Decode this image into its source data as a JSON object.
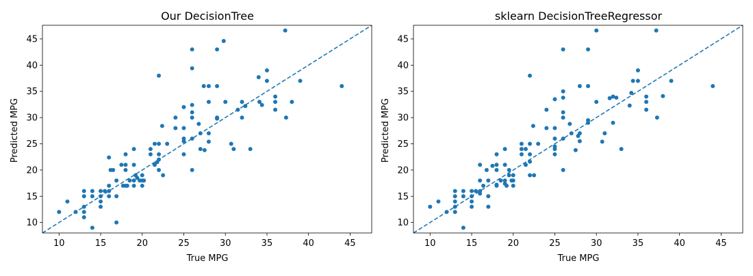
{
  "chart_data": [
    {
      "type": "scatter",
      "title": "Our DecisionTree",
      "xlabel": "True MPG",
      "ylabel": "Predicted MPG",
      "xlim": [
        8.0,
        47.6
      ],
      "ylim": [
        8.0,
        47.6
      ],
      "xticks": [
        10,
        15,
        20,
        25,
        30,
        35,
        40,
        45
      ],
      "yticks": [
        10,
        15,
        20,
        25,
        30,
        35,
        40,
        45
      ],
      "grid": false,
      "point_color": "#1f77b4",
      "reference_line": {
        "style": "dashed",
        "color": "#1f77b4",
        "from": [
          8.0,
          8.0
        ],
        "to": [
          47.6,
          47.6
        ]
      },
      "points": [
        [
          10,
          12
        ],
        [
          11,
          14
        ],
        [
          12,
          12
        ],
        [
          13,
          16
        ],
        [
          13,
          15
        ],
        [
          13,
          13
        ],
        [
          13,
          12
        ],
        [
          13,
          11
        ],
        [
          14,
          9
        ],
        [
          14,
          16
        ],
        [
          14,
          15
        ],
        [
          15,
          16
        ],
        [
          15,
          15
        ],
        [
          15,
          14
        ],
        [
          15,
          13
        ],
        [
          15.5,
          16
        ],
        [
          16,
          17
        ],
        [
          16,
          16
        ],
        [
          16,
          15
        ],
        [
          16,
          22.4
        ],
        [
          16.2,
          20
        ],
        [
          16.5,
          20
        ],
        [
          16.9,
          18
        ],
        [
          16.9,
          15
        ],
        [
          16.9,
          10
        ],
        [
          17.5,
          21
        ],
        [
          17.7,
          17
        ],
        [
          18,
          23
        ],
        [
          18,
          21
        ],
        [
          18,
          20
        ],
        [
          18,
          17
        ],
        [
          18.2,
          17
        ],
        [
          18.5,
          18
        ],
        [
          19,
          24
        ],
        [
          19,
          21
        ],
        [
          19,
          18
        ],
        [
          19,
          17
        ],
        [
          19.2,
          19
        ],
        [
          19.4,
          18.5
        ],
        [
          19.7,
          18
        ],
        [
          20,
          19
        ],
        [
          20,
          18
        ],
        [
          20,
          17
        ],
        [
          20.2,
          18
        ],
        [
          21,
          24
        ],
        [
          21,
          23
        ],
        [
          21.5,
          21
        ],
        [
          21.5,
          25
        ],
        [
          21.8,
          21.5
        ],
        [
          22,
          38
        ],
        [
          22,
          25
        ],
        [
          22,
          23
        ],
        [
          22,
          22
        ],
        [
          22,
          20
        ],
        [
          22.4,
          28.4
        ],
        [
          22.5,
          19
        ],
        [
          23,
          25
        ],
        [
          24,
          30
        ],
        [
          24,
          28
        ],
        [
          25,
          32
        ],
        [
          25,
          28
        ],
        [
          25,
          26
        ],
        [
          25,
          25.5
        ],
        [
          25,
          23
        ],
        [
          26,
          43
        ],
        [
          26,
          39.4
        ],
        [
          26,
          32.4
        ],
        [
          26,
          31
        ],
        [
          26,
          30
        ],
        [
          26,
          26
        ],
        [
          26,
          20
        ],
        [
          26.8,
          28.8
        ],
        [
          27,
          24
        ],
        [
          27,
          27
        ],
        [
          27.4,
          36
        ],
        [
          27.5,
          23.8
        ],
        [
          28,
          36
        ],
        [
          28,
          33
        ],
        [
          28,
          27
        ],
        [
          28,
          25.4
        ],
        [
          29,
          43
        ],
        [
          29,
          36
        ],
        [
          29,
          30
        ],
        [
          29,
          29.8
        ],
        [
          29.8,
          44.6
        ],
        [
          30,
          33
        ],
        [
          30.7,
          25
        ],
        [
          31,
          24
        ],
        [
          31.5,
          31.5
        ],
        [
          32,
          33
        ],
        [
          32,
          30
        ],
        [
          32.4,
          32.2
        ],
        [
          33,
          24
        ],
        [
          34,
          37.7
        ],
        [
          34.1,
          33
        ],
        [
          34.4,
          32.4
        ],
        [
          35,
          39
        ],
        [
          35,
          37
        ],
        [
          36,
          34
        ],
        [
          36,
          33
        ],
        [
          36,
          31.5
        ],
        [
          37.2,
          46.6
        ],
        [
          37.3,
          30
        ],
        [
          38,
          33
        ],
        [
          39,
          37
        ],
        [
          44,
          36
        ]
      ]
    },
    {
      "type": "scatter",
      "title": "sklearn DecisionTreeRegressor",
      "xlabel": "True MPG",
      "ylabel": "Predicted MPG",
      "xlim": [
        8.0,
        47.6
      ],
      "ylim": [
        8.0,
        47.6
      ],
      "xticks": [
        10,
        15,
        20,
        25,
        30,
        35,
        40,
        45
      ],
      "yticks": [
        10,
        15,
        20,
        25,
        30,
        35,
        40,
        45
      ],
      "grid": false,
      "point_color": "#1f77b4",
      "reference_line": {
        "style": "dashed",
        "color": "#1f77b4",
        "from": [
          8.0,
          8.0
        ],
        "to": [
          47.6,
          47.6
        ]
      },
      "points": [
        [
          10,
          13
        ],
        [
          11,
          14
        ],
        [
          12,
          12
        ],
        [
          13,
          16
        ],
        [
          13,
          15
        ],
        [
          13,
          14
        ],
        [
          13,
          13
        ],
        [
          13,
          12
        ],
        [
          14,
          9
        ],
        [
          14,
          16
        ],
        [
          14,
          15
        ],
        [
          15,
          16
        ],
        [
          15,
          15
        ],
        [
          15,
          14
        ],
        [
          15,
          13
        ],
        [
          15.5,
          16
        ],
        [
          16,
          21
        ],
        [
          16,
          18
        ],
        [
          16,
          16
        ],
        [
          16,
          15.5
        ],
        [
          16.4,
          17
        ],
        [
          16.8,
          20
        ],
        [
          17,
          13
        ],
        [
          17,
          15
        ],
        [
          17,
          18
        ],
        [
          17.5,
          20.8
        ],
        [
          18,
          23
        ],
        [
          18,
          21
        ],
        [
          18,
          20
        ],
        [
          18,
          17
        ],
        [
          18,
          17.2
        ],
        [
          18.5,
          18
        ],
        [
          19,
          24
        ],
        [
          19,
          21
        ],
        [
          19,
          18
        ],
        [
          19,
          17.4
        ],
        [
          19.2,
          17
        ],
        [
          19.5,
          19
        ],
        [
          19.5,
          20
        ],
        [
          19.8,
          18
        ],
        [
          20,
          19
        ],
        [
          20,
          18
        ],
        [
          20,
          17
        ],
        [
          21,
          25
        ],
        [
          21,
          24
        ],
        [
          21,
          23
        ],
        [
          21.5,
          24
        ],
        [
          21.5,
          21
        ],
        [
          22,
          38
        ],
        [
          22,
          25
        ],
        [
          22,
          23
        ],
        [
          22,
          21.6
        ],
        [
          22,
          19
        ],
        [
          22.4,
          28.4
        ],
        [
          22.5,
          19
        ],
        [
          23,
          25
        ],
        [
          24,
          31.5
        ],
        [
          24,
          28
        ],
        [
          25,
          33.5
        ],
        [
          25,
          28
        ],
        [
          25,
          26
        ],
        [
          25,
          24.5
        ],
        [
          25,
          24
        ],
        [
          25,
          23
        ],
        [
          26,
          43
        ],
        [
          26,
          35
        ],
        [
          26,
          33.8
        ],
        [
          26,
          31
        ],
        [
          26,
          30
        ],
        [
          26,
          26
        ],
        [
          26,
          20
        ],
        [
          26.8,
          28.8
        ],
        [
          27,
          27
        ],
        [
          27.5,
          23.8
        ],
        [
          27.8,
          26.5
        ],
        [
          28,
          36
        ],
        [
          28,
          27
        ],
        [
          28,
          25.5
        ],
        [
          29,
          43
        ],
        [
          29,
          36
        ],
        [
          29,
          29.5
        ],
        [
          29,
          29
        ],
        [
          30,
          46.6
        ],
        [
          30,
          33
        ],
        [
          30.7,
          25.4
        ],
        [
          31,
          27
        ],
        [
          31.6,
          33.7
        ],
        [
          32,
          34
        ],
        [
          32,
          29
        ],
        [
          32.4,
          33.8
        ],
        [
          33,
          24
        ],
        [
          34,
          32.3
        ],
        [
          34.2,
          34.7
        ],
        [
          34.4,
          37
        ],
        [
          35,
          39
        ],
        [
          35,
          37
        ],
        [
          36,
          34
        ],
        [
          36,
          33
        ],
        [
          36,
          31.5
        ],
        [
          37.2,
          46.6
        ],
        [
          37.3,
          30
        ],
        [
          38,
          34.1
        ],
        [
          39,
          37
        ],
        [
          44,
          36
        ]
      ]
    }
  ]
}
